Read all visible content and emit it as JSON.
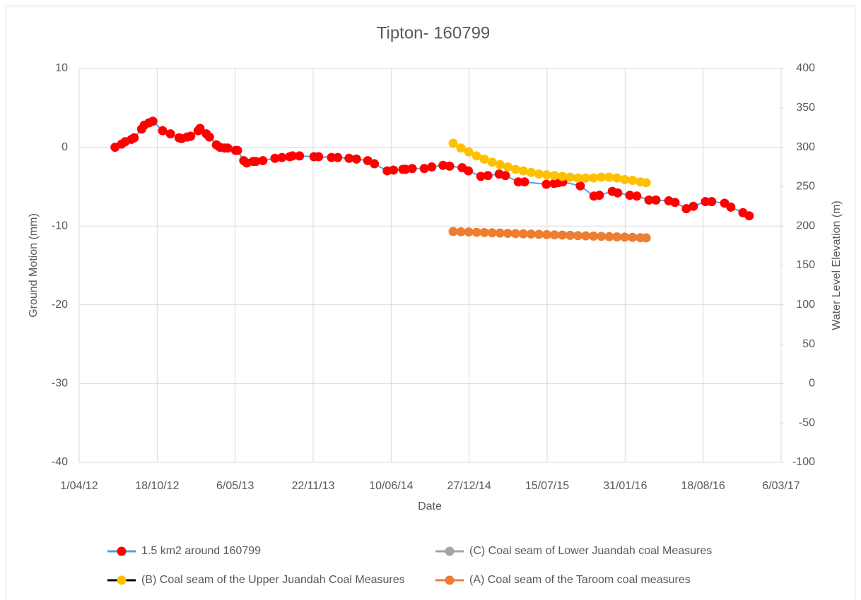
{
  "chart_data": {
    "type": "scatter-line",
    "title": "Tipton- 160799",
    "x_label": "Date",
    "y_label": "Ground Motion (mm)",
    "y2_label": "Water Level Elevation (m)",
    "xlim": [
      41000,
      42800
    ],
    "xticks": [
      {
        "value": 41000,
        "label": "1/04/12"
      },
      {
        "value": 41200,
        "label": "18/10/12"
      },
      {
        "value": 41400,
        "label": "6/05/13"
      },
      {
        "value": 41600,
        "label": "22/11/13"
      },
      {
        "value": 41800,
        "label": "10/06/14"
      },
      {
        "value": 42000,
        "label": "27/12/14"
      },
      {
        "value": 42200,
        "label": "15/07/15"
      },
      {
        "value": 42400,
        "label": "31/01/16"
      },
      {
        "value": 42600,
        "label": "18/08/16"
      },
      {
        "value": 42800,
        "label": "6/03/17"
      }
    ],
    "ylim": [
      -40,
      10
    ],
    "yticks": [
      10,
      0,
      -10,
      -20,
      -30,
      -40
    ],
    "y2lim": [
      -100,
      400
    ],
    "y2ticks": [
      400,
      350,
      300,
      250,
      200,
      150,
      100,
      50,
      0,
      -50,
      -100
    ],
    "grid": true,
    "legend": "bottom",
    "series": [
      {
        "name": "1.5 km2 around 160799",
        "color": "#ff0000",
        "line_color": "#5b9bd5",
        "x": [
          41092,
          41109,
          41118,
          41134,
          41141,
          41160,
          41167,
          41179,
          41189,
          41214,
          41234,
          41256,
          41263,
          41277,
          41286,
          41305,
          41310,
          41326,
          41334,
          41352,
          41361,
          41373,
          41381,
          41401,
          41406,
          41422,
          41430,
          41446,
          41453,
          41471,
          41502,
          41520,
          41540,
          41547,
          41565,
          41602,
          41614,
          41647,
          41663,
          41692,
          41711,
          41740,
          41757,
          41790,
          41806,
          41830,
          41837,
          41854,
          41885,
          41904,
          41933,
          41950,
          41982,
          41998,
          42030,
          42048,
          42077,
          42093,
          42126,
          42142,
          42198,
          42218,
          42229,
          42240,
          42285,
          42320,
          42334,
          42367,
          42381,
          42412,
          42430,
          42461,
          42479,
          42512,
          42528,
          42557,
          42575,
          42606,
          42622,
          42655,
          42671,
          42702,
          42718
        ],
        "values": [
          0,
          0.4,
          0.7,
          1.0,
          1.2,
          2.3,
          2.8,
          3.1,
          3.3,
          2.1,
          1.7,
          1.2,
          1.1,
          1.3,
          1.4,
          2.1,
          2.4,
          1.7,
          1.3,
          0.3,
          0.0,
          -0.1,
          -0.1,
          -0.4,
          -0.4,
          -1.7,
          -2.0,
          -1.8,
          -1.8,
          -1.7,
          -1.4,
          -1.3,
          -1.2,
          -1.1,
          -1.1,
          -1.2,
          -1.2,
          -1.3,
          -1.3,
          -1.4,
          -1.5,
          -1.7,
          -2.1,
          -3.0,
          -2.9,
          -2.8,
          -2.8,
          -2.7,
          -2.7,
          -2.5,
          -2.3,
          -2.4,
          -2.6,
          -3.0,
          -3.7,
          -3.6,
          -3.4,
          -3.6,
          -4.4,
          -4.4,
          -4.7,
          -4.6,
          -4.5,
          -4.4,
          -4.9,
          -6.2,
          -6.1,
          -5.6,
          -5.8,
          -6.1,
          -6.2,
          -6.7,
          -6.7,
          -6.8,
          -7.0,
          -7.8,
          -7.5,
          -6.9,
          -6.9,
          -7.1,
          -7.6,
          -8.3,
          -8.7
        ]
      },
      {
        "name": "(C) Coal seam of Lower Juandah coal Measures",
        "color": "#a5a5a5",
        "line_color": "#a5a5a5",
        "axis": "y2",
        "x": [],
        "values": []
      },
      {
        "name": "(B) Coal seam of the Upper Juandah Coal Measures",
        "color": "#ffc000",
        "line_color": "#000000",
        "axis": "y2",
        "x": [
          41959,
          41979,
          41999,
          42019,
          42039,
          42059,
          42079,
          42099,
          42119,
          42139,
          42159,
          42179,
          42199,
          42219,
          42239,
          42259,
          42279,
          42299,
          42319,
          42339,
          42359,
          42379,
          42399,
          42419,
          42439,
          42454
        ],
        "values": [
          305,
          299,
          294,
          289,
          285,
          281,
          278,
          275,
          272,
          270,
          268,
          266,
          265,
          264,
          263,
          262,
          261,
          261,
          261,
          262,
          262,
          261,
          259,
          258,
          256,
          255
        ]
      },
      {
        "name": "(A) Coal seam of the Taroom coal measures",
        "color": "#ed7d31",
        "line_color": "#ed7d31",
        "axis": "y2",
        "x": [
          41959,
          41979,
          41999,
          42019,
          42039,
          42059,
          42079,
          42099,
          42119,
          42139,
          42159,
          42179,
          42199,
          42219,
          42239,
          42259,
          42279,
          42299,
          42319,
          42339,
          42359,
          42379,
          42399,
          42419,
          42439,
          42454
        ],
        "values": [
          193,
          192.7,
          192.4,
          192.0,
          191.7,
          191.4,
          191.1,
          190.7,
          190.4,
          190.1,
          189.8,
          189.4,
          189.1,
          188.8,
          188.5,
          188.2,
          187.8,
          187.5,
          187.2,
          186.9,
          186.5,
          186.2,
          185.9,
          185.6,
          185.2,
          185.0
        ]
      }
    ]
  }
}
